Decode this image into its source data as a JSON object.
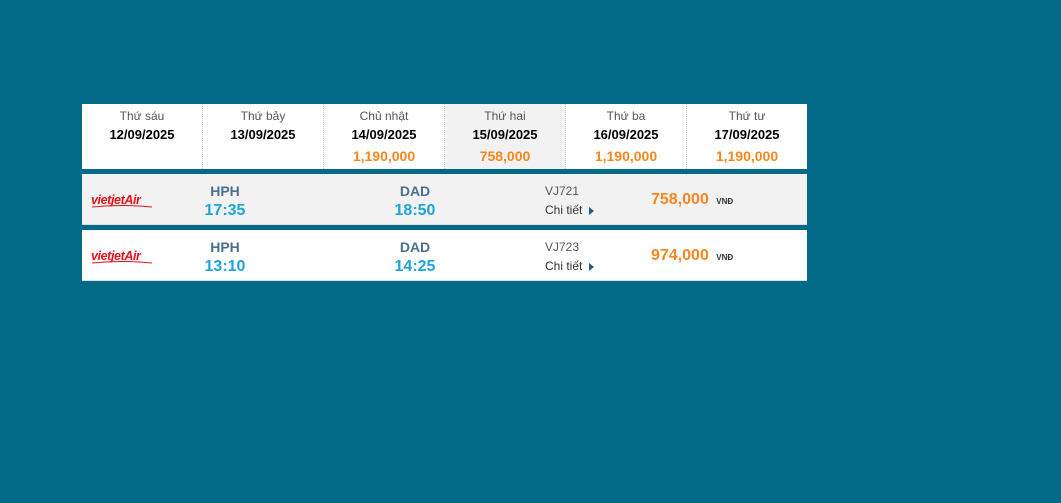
{
  "date_strip": [
    {
      "day": "Thứ sáu",
      "date": "12/09/2025",
      "price": ""
    },
    {
      "day": "Thứ bảy",
      "date": "13/09/2025",
      "price": ""
    },
    {
      "day": "Chủ nhật",
      "date": "14/09/2025",
      "price": "1,190,000"
    },
    {
      "day": "Thứ hai",
      "date": "15/09/2025",
      "price": "758,000"
    },
    {
      "day": "Thứ ba",
      "date": "16/09/2025",
      "price": "1,190,000"
    },
    {
      "day": "Thứ tư",
      "date": "17/09/2025",
      "price": "1,190,000"
    }
  ],
  "selected_index": 3,
  "flights": [
    {
      "airline_logo": "vietjet-air-logo",
      "from": "HPH",
      "depart_time": "17:35",
      "to": "DAD",
      "arrive_time": "18:50",
      "flight_no": "VJ721",
      "detail_label": "Chi tiết",
      "price": "758,000",
      "currency": "VNĐ"
    },
    {
      "airline_logo": "vietjet-air-logo",
      "from": "HPH",
      "depart_time": "13:10",
      "to": "DAD",
      "arrive_time": "14:25",
      "flight_no": "VJ723",
      "detail_label": "Chi tiết",
      "price": "974,000",
      "currency": "VNĐ"
    }
  ],
  "colors": {
    "background": "#026987",
    "price": "#f7861e",
    "time": "#1da4d8",
    "airport_code": "#4e6f8a",
    "logo_red": "#e3101a"
  }
}
